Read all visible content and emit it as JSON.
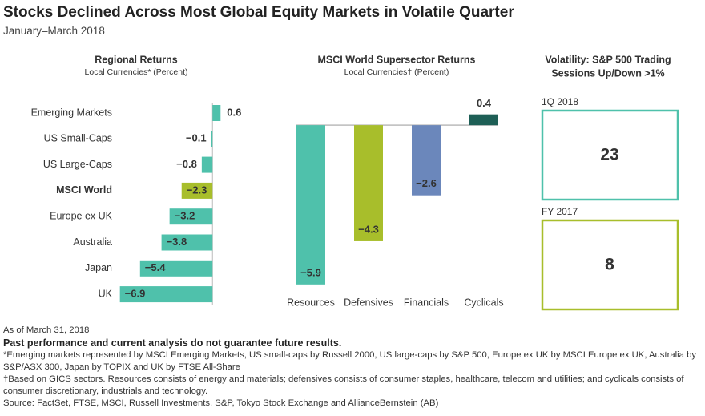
{
  "header": {
    "title": "Stocks Declined Across Most Global Equity Markets in Volatile Quarter",
    "subtitle": "January–March 2018"
  },
  "chart_data": [
    {
      "type": "bar",
      "orientation": "horizontal",
      "title": "Regional Returns",
      "subtitle": "Local Currencies* (Percent)",
      "categories": [
        "Emerging Markets",
        "US Small-Caps",
        "US Large-Caps",
        "MSCI World",
        "Europe ex UK",
        "Australia",
        "Japan",
        "UK"
      ],
      "values": [
        0.6,
        -0.1,
        -0.8,
        -2.3,
        -3.2,
        -3.8,
        -5.4,
        -6.9
      ],
      "value_labels": [
        "0.6",
        "−0.1",
        "−0.8",
        "−2.3",
        "−3.2",
        "−3.8",
        "−5.4",
        "−6.9"
      ],
      "colors": [
        "#4fc1ab",
        "#4fc1ab",
        "#4fc1ab",
        "#a8be2b",
        "#4fc1ab",
        "#4fc1ab",
        "#4fc1ab",
        "#4fc1ab"
      ],
      "xlim": [
        -7,
        1
      ]
    },
    {
      "type": "bar",
      "orientation": "vertical",
      "title": "MSCI World Supersector Returns",
      "subtitle": "Local Currencies† (Percent)",
      "categories": [
        "Resources",
        "Defensives",
        "Financials",
        "Cyclicals"
      ],
      "values": [
        -5.9,
        -4.3,
        -2.6,
        0.4
      ],
      "value_labels": [
        "−5.9",
        "−4.3",
        "−2.6",
        "0.4"
      ],
      "colors": [
        "#4fc1ab",
        "#a8be2b",
        "#6b87bb",
        "#1e5f56"
      ],
      "ylim": [
        -6,
        0.5
      ]
    }
  ],
  "volatility": {
    "title_lines": [
      "Volatility: S&P 500 Trading",
      "Sessions Up/Down >1%"
    ],
    "boxes": [
      {
        "label": "1Q 2018",
        "value": 23,
        "color": "#4fc1ab"
      },
      {
        "label": "FY 2017",
        "value": 8,
        "color": "#a8be2b"
      }
    ]
  },
  "notes": {
    "date": "As of March 31, 2018",
    "disclaimer": "Past performance and current analysis do not guarantee future results.",
    "footnotes": [
      "*Emerging markets represented by MSCI Emerging Markets, US small-caps by Russell 2000, US large-caps by S&P 500, Europe ex UK by MSCI Europe ex UK, Australia by S&P/ASX 300, Japan by TOPIX and UK by FTSE All-Share",
      "†Based on GICS sectors. Resources consists of energy and materials; defensives consists of consumer staples, healthcare, telecom and utilities; and cyclicals consists of consumer discretionary, industrials and technology."
    ],
    "source": "Source: FactSet, FTSE, MSCI, Russell Investments, S&P, Tokyo Stock Exchange and AllianceBernstein (AB)"
  }
}
